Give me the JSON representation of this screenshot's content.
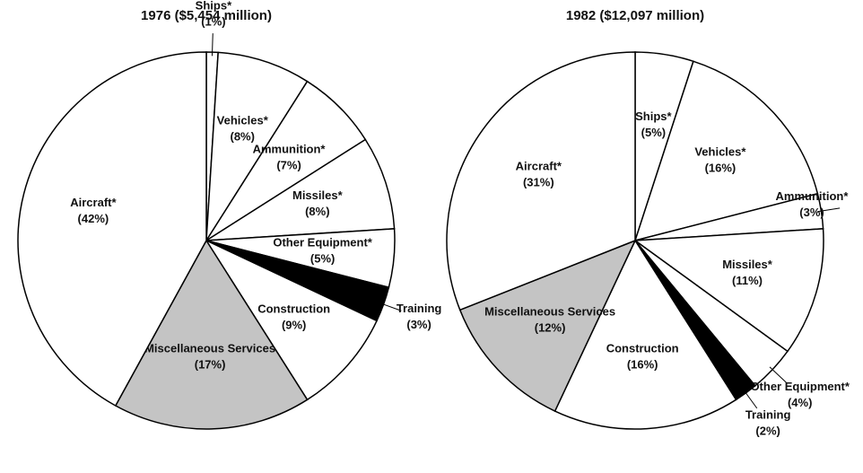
{
  "chart_data": [
    {
      "type": "pie",
      "title": "1976 ($5,454 million)",
      "categories": [
        "Ships*",
        "Vehicles*",
        "Ammunition*",
        "Missiles*",
        "Other Equipment*",
        "Training",
        "Construction",
        "Miscellaneous Services",
        "Aircraft*"
      ],
      "values": [
        1,
        8,
        7,
        8,
        5,
        3,
        9,
        17,
        42
      ],
      "value_labels": [
        "(1%)",
        "(8%)",
        "(7%)",
        "(8%)",
        "(5%)",
        "(3%)",
        "(9%)",
        "(17%)",
        "(42%)"
      ],
      "colors": [
        "#ffffff",
        "#ffffff",
        "#ffffff",
        "#ffffff",
        "#ffffff",
        "#000000",
        "#ffffff",
        "#c4c4c4",
        "#ffffff"
      ]
    },
    {
      "type": "pie",
      "title": "1982 ($12,097 million)",
      "categories": [
        "Ships*",
        "Vehicles*",
        "Ammunition*",
        "Missiles*",
        "Other Equipment*",
        "Training",
        "Construction",
        "Miscellaneous Services",
        "Aircraft*"
      ],
      "values": [
        5,
        16,
        3,
        11,
        4,
        2,
        16,
        12,
        31
      ],
      "value_labels": [
        "(5%)",
        "(16%)",
        "(3%)",
        "(11%)",
        "(4%)",
        "(2%)",
        "(16%)",
        "(12%)",
        "(31%)"
      ],
      "colors": [
        "#ffffff",
        "#ffffff",
        "#ffffff",
        "#ffffff",
        "#ffffff",
        "#000000",
        "#ffffff",
        "#c4c4c4",
        "#ffffff"
      ]
    }
  ]
}
